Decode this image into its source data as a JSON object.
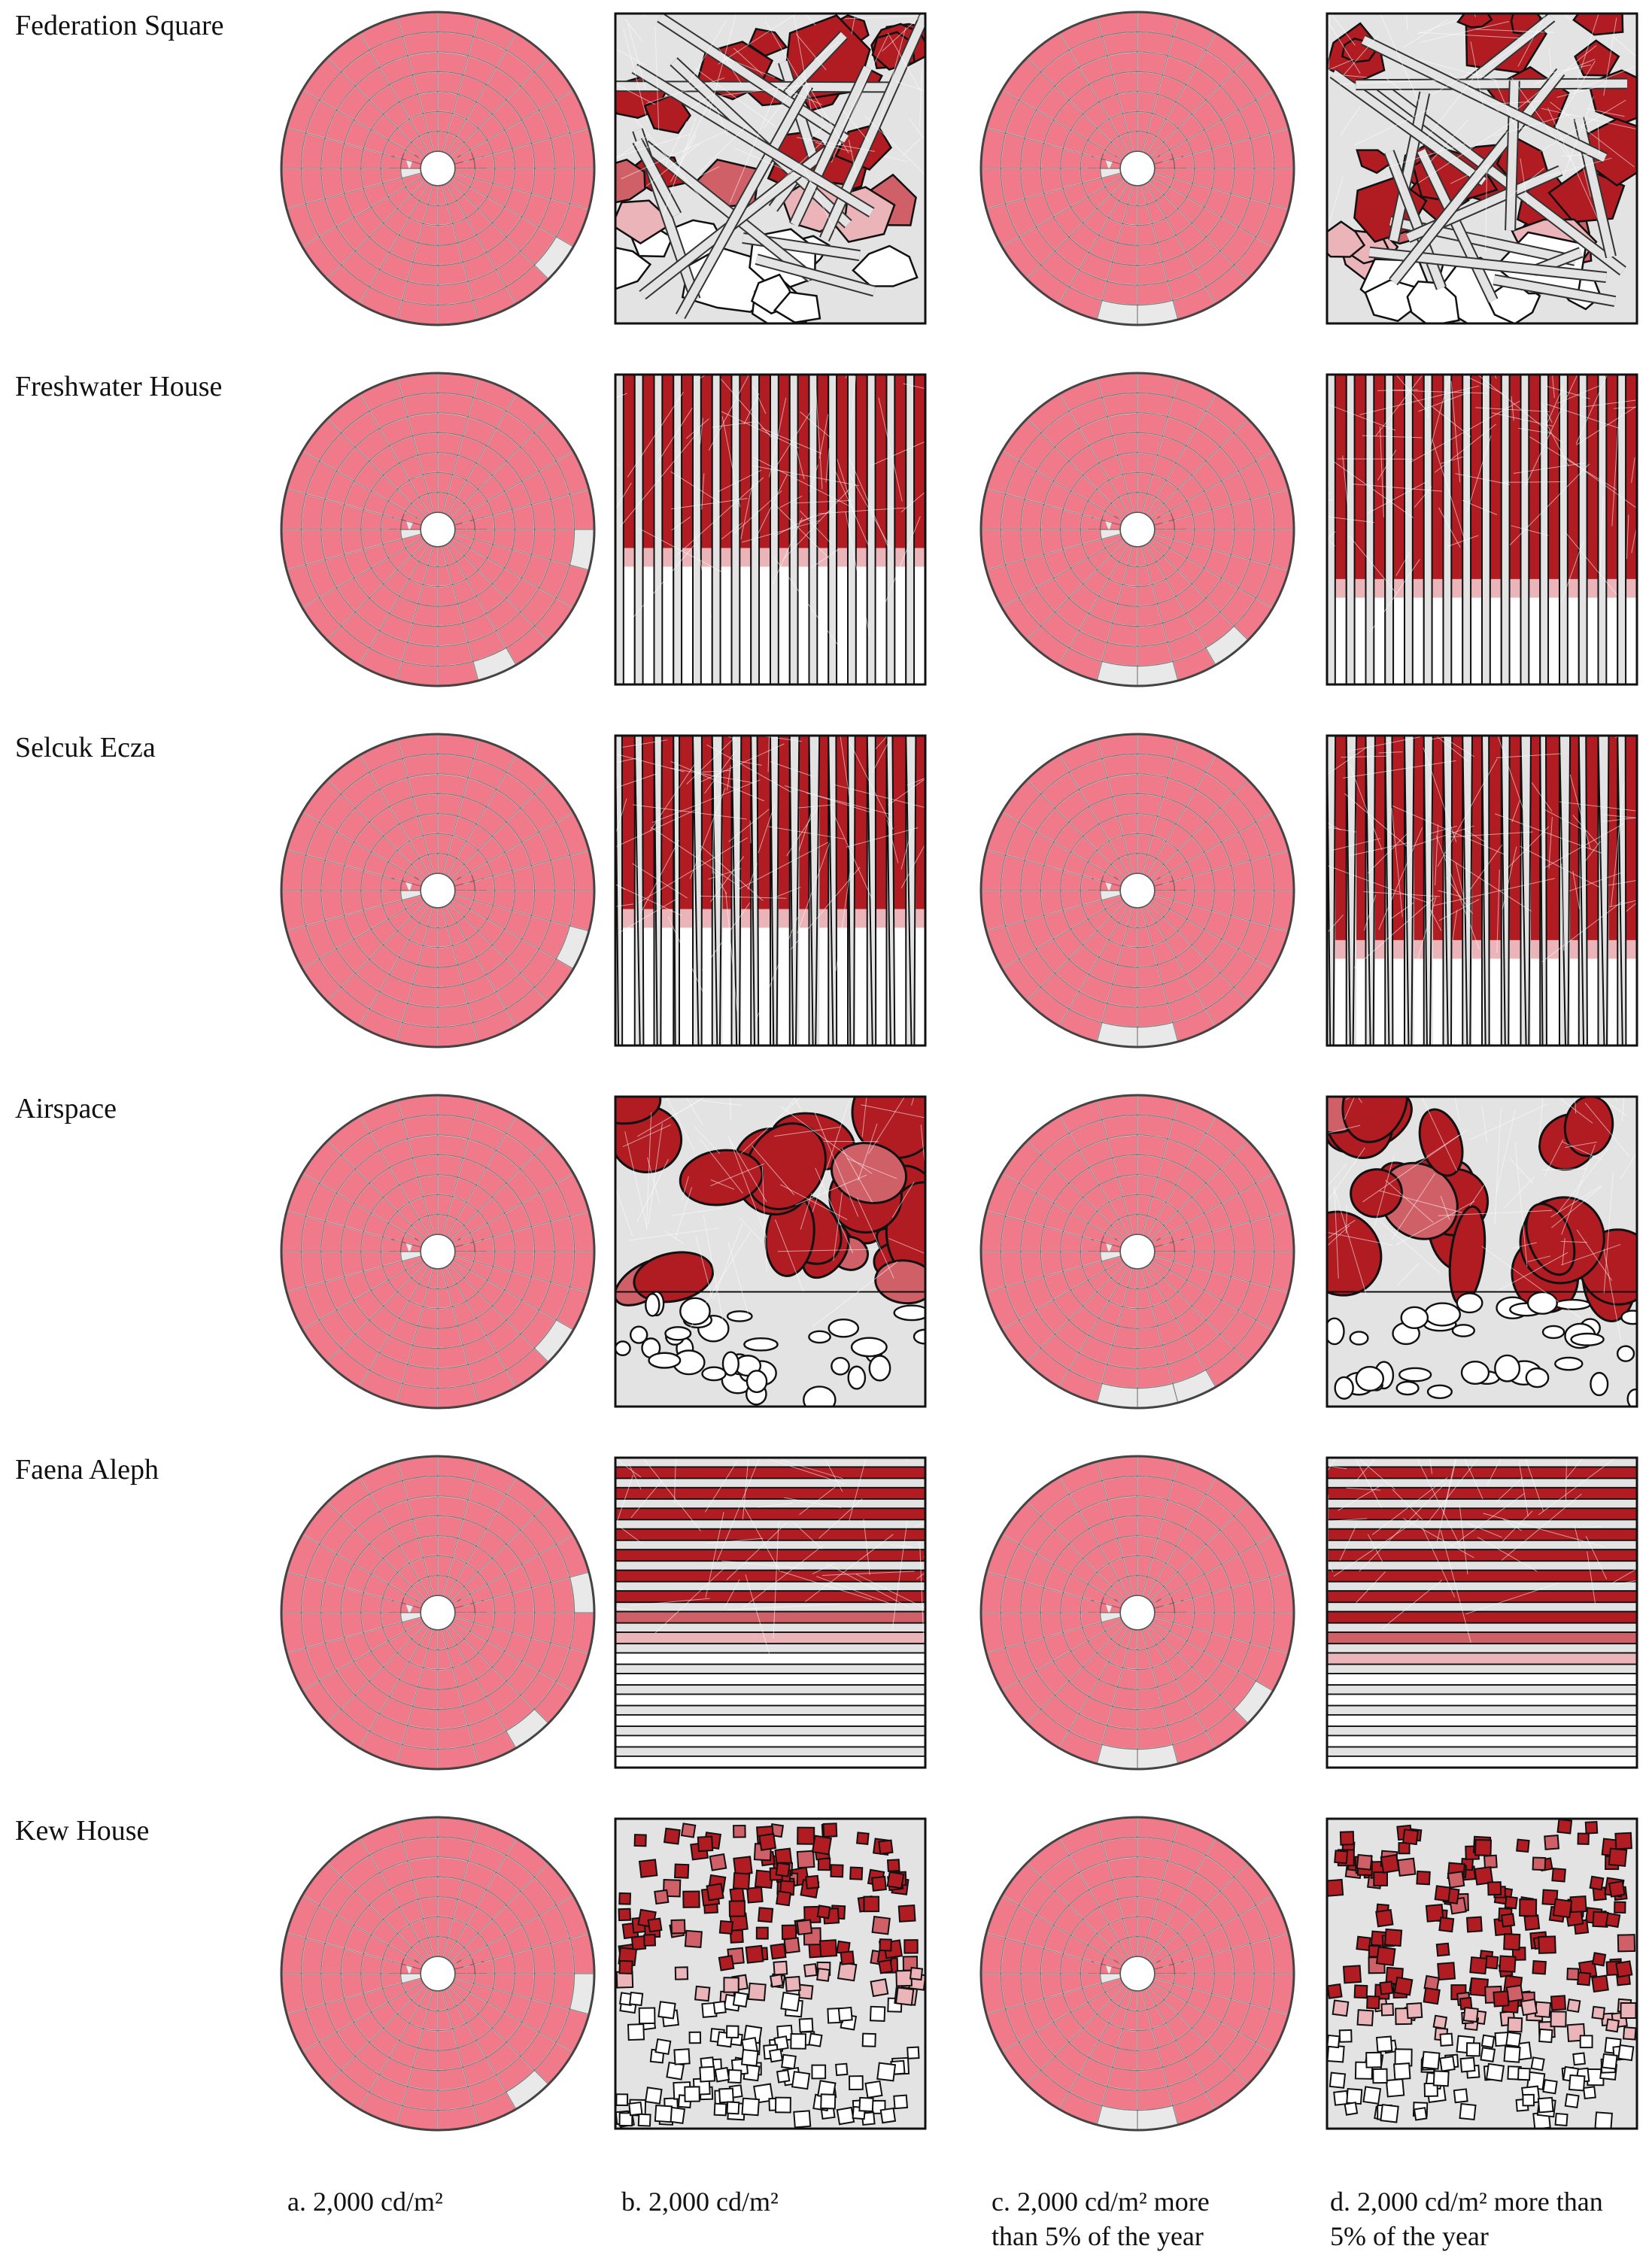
{
  "figure": {
    "rows": [
      {
        "name": "Federation Square",
        "pattern": "voronoi-lines",
        "a_gaps": [
          9
        ],
        "c_gaps": []
      },
      {
        "name": "Freshwater House",
        "pattern": "vertical-fins",
        "a_gaps": [
          7,
          11
        ],
        "c_gaps": [
          5,
          8
        ]
      },
      {
        "name": "Selcuk Ecza",
        "pattern": "tapered-fins",
        "a_gaps": [
          10
        ],
        "c_gaps": [
          6
        ]
      },
      {
        "name": "Airspace",
        "pattern": "organic-cells",
        "a_gaps": [
          9
        ],
        "c_gaps": [
          7
        ]
      },
      {
        "name": "Faena Aleph",
        "pattern": "horizontal-louvers",
        "a_gaps": [
          8,
          12
        ],
        "c_gaps": [
          6,
          9
        ]
      },
      {
        "name": "Kew House",
        "pattern": "scattered-squares",
        "a_gaps": [
          8,
          11
        ],
        "c_gaps": []
      }
    ],
    "columns": [
      {
        "line1": "a. 2,000 cd/m²",
        "line2": ""
      },
      {
        "line1": "b. 2,000 cd/m²",
        "line2": ""
      },
      {
        "line1": "c. 2,000 cd/m²  more",
        "line2": "than 5% of the year"
      },
      {
        "line1": "d. 2,000 cd/m²  more than",
        "line2": "5% of the year"
      }
    ],
    "colors": {
      "glare": "#f07a8a",
      "glare_light": "#f7a9b5",
      "dome_fill": "#e9e9e9",
      "grid_line": "#555555",
      "panel_bg": "#e3e3e3",
      "dark_red": "#b01c22",
      "medium_red": "#d06068",
      "light_red": "#eab4b8",
      "outline": "#111111"
    }
  }
}
